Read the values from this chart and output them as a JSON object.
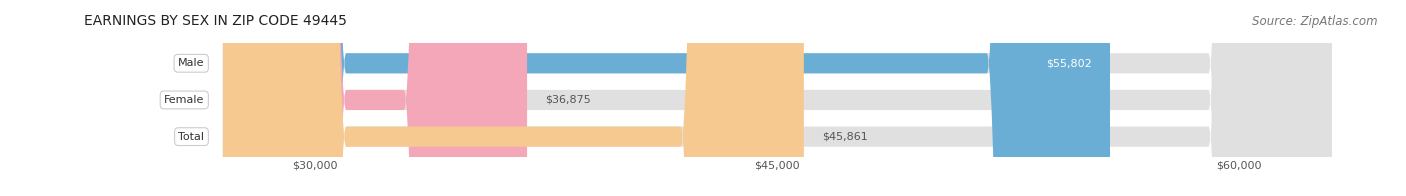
{
  "title": "EARNINGS BY SEX IN ZIP CODE 49445",
  "source": "Source: ZipAtlas.com",
  "categories": [
    "Male",
    "Female",
    "Total"
  ],
  "values": [
    55802,
    36875,
    45861
  ],
  "bar_colors": [
    "#6aaed6",
    "#f4a7b9",
    "#f5c990"
  ],
  "bar_bg_color": "#e0e0e0",
  "value_label_colors": [
    "#ffffff",
    "#555555",
    "#555555"
  ],
  "xmin": 27000,
  "xmax": 63000,
  "xticks": [
    30000,
    45000,
    60000
  ],
  "xtick_labels": [
    "$30,000",
    "$45,000",
    "$60,000"
  ],
  "title_fontsize": 10,
  "source_fontsize": 8.5,
  "bar_height": 0.55,
  "figsize": [
    14.06,
    1.96
  ],
  "dpi": 100
}
